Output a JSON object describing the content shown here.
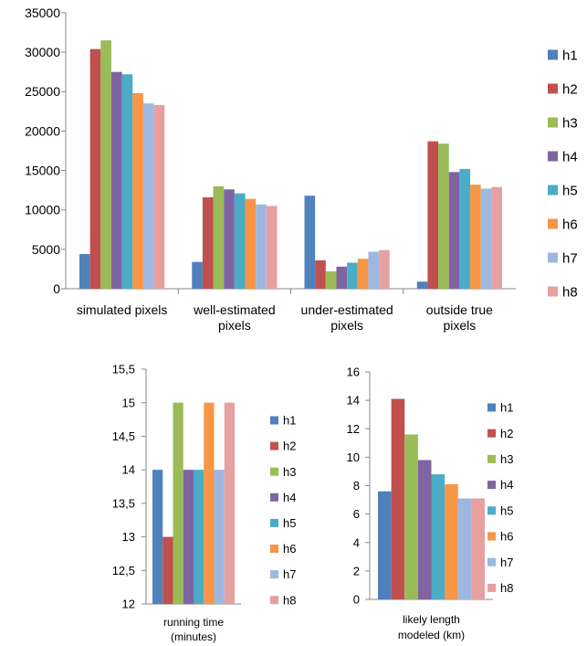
{
  "series_names": [
    "h1",
    "h2",
    "h3",
    "h4",
    "h5",
    "h6",
    "h7",
    "h8"
  ],
  "colors": [
    "#4F81BD",
    "#C0504D",
    "#9BBB59",
    "#8064A2",
    "#4BACC6",
    "#F79646",
    "#9DB8E0",
    "#E6A0A0"
  ],
  "chart_data": [
    {
      "type": "bar",
      "title": "",
      "xlabel": "",
      "ylabel": "",
      "categories": [
        [
          "simulated pixels"
        ],
        [
          "well-estimated",
          "pixels"
        ],
        [
          "under-estimated",
          "pixels"
        ],
        [
          "outside true",
          "pixels"
        ]
      ],
      "yticks": [
        "0",
        "5000",
        "10000",
        "15000",
        "20000",
        "25000",
        "30000",
        "35000"
      ],
      "ylim": [
        0,
        35000
      ],
      "legend": "right",
      "series": [
        {
          "name": "h1",
          "values": [
            4400,
            3400,
            11800,
            900
          ]
        },
        {
          "name": "h2",
          "values": [
            30400,
            11600,
            3600,
            18700
          ]
        },
        {
          "name": "h3",
          "values": [
            31500,
            13000,
            2200,
            18400
          ]
        },
        {
          "name": "h4",
          "values": [
            27500,
            12600,
            2800,
            14800
          ]
        },
        {
          "name": "h5",
          "values": [
            27200,
            12100,
            3300,
            15200
          ]
        },
        {
          "name": "h6",
          "values": [
            24800,
            11400,
            3800,
            13200
          ]
        },
        {
          "name": "h7",
          "values": [
            23500,
            10700,
            4700,
            12700
          ]
        },
        {
          "name": "h8",
          "values": [
            23300,
            10500,
            4900,
            12900
          ]
        }
      ]
    },
    {
      "type": "bar",
      "title": "",
      "categories": [
        [
          "running time",
          "(minutes)"
        ]
      ],
      "yticks": [
        "12",
        "12,5",
        "13",
        "13,5",
        "14",
        "14,5",
        "15",
        "15,5"
      ],
      "ylim": [
        12,
        15.5
      ],
      "legend": "right",
      "series": [
        {
          "name": "h1",
          "values": [
            14
          ]
        },
        {
          "name": "h2",
          "values": [
            13
          ]
        },
        {
          "name": "h3",
          "values": [
            15
          ]
        },
        {
          "name": "h4",
          "values": [
            14
          ]
        },
        {
          "name": "h5",
          "values": [
            14
          ]
        },
        {
          "name": "h6",
          "values": [
            15
          ]
        },
        {
          "name": "h7",
          "values": [
            14
          ]
        },
        {
          "name": "h8",
          "values": [
            15
          ]
        }
      ]
    },
    {
      "type": "bar",
      "title": "",
      "categories": [
        [
          "likely length",
          "modeled (km)"
        ]
      ],
      "yticks": [
        "0",
        "2",
        "4",
        "6",
        "8",
        "10",
        "12",
        "14",
        "16"
      ],
      "ylim": [
        0,
        16
      ],
      "legend": "right",
      "series": [
        {
          "name": "h1",
          "values": [
            7.6
          ]
        },
        {
          "name": "h2",
          "values": [
            14.1
          ]
        },
        {
          "name": "h3",
          "values": [
            11.6
          ]
        },
        {
          "name": "h4",
          "values": [
            9.8
          ]
        },
        {
          "name": "h5",
          "values": [
            8.8
          ]
        },
        {
          "name": "h6",
          "values": [
            8.1
          ]
        },
        {
          "name": "h7",
          "values": [
            7.1
          ]
        },
        {
          "name": "h8",
          "values": [
            7.1
          ]
        }
      ]
    }
  ]
}
